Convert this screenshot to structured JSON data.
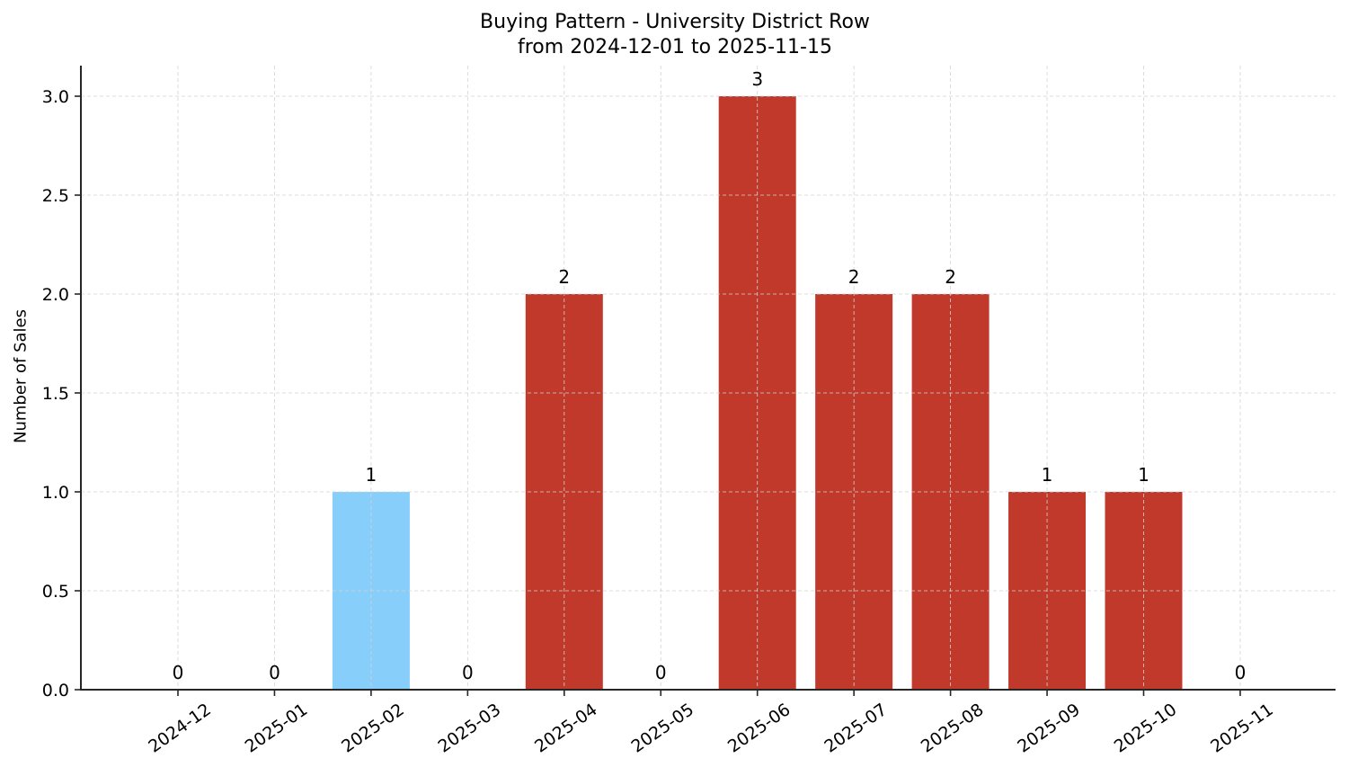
{
  "chart_data": {
    "type": "bar",
    "title": "Buying Pattern - University District Row",
    "subtitle": "from 2024-12-01 to 2025-11-15",
    "xlabel": "",
    "ylabel": "Number of Sales",
    "categories": [
      "2024-12",
      "2025-01",
      "2025-02",
      "2025-03",
      "2025-04",
      "2025-05",
      "2025-06",
      "2025-07",
      "2025-08",
      "2025-09",
      "2025-10",
      "2025-11"
    ],
    "values": [
      0,
      0,
      1,
      0,
      2,
      0,
      3,
      2,
      2,
      1,
      1,
      0
    ],
    "bar_colors": [
      "#c0392b",
      "#c0392b",
      "#87cefa",
      "#c0392b",
      "#c0392b",
      "#c0392b",
      "#c0392b",
      "#c0392b",
      "#c0392b",
      "#c0392b",
      "#c0392b",
      "#c0392b"
    ],
    "data_labels": [
      "0",
      "0",
      "1",
      "0",
      "2",
      "0",
      "3",
      "2",
      "2",
      "1",
      "1",
      "0"
    ],
    "yticks": [
      "0.0",
      "0.5",
      "1.0",
      "1.5",
      "2.0",
      "2.5",
      "3.0"
    ],
    "ylim": [
      0,
      3.15
    ],
    "grid": true,
    "legend": null
  },
  "colors": {
    "highlight": "#87cefa",
    "primary": "#c0392b",
    "grid": "#d3d3d3",
    "axis": "#262626"
  }
}
